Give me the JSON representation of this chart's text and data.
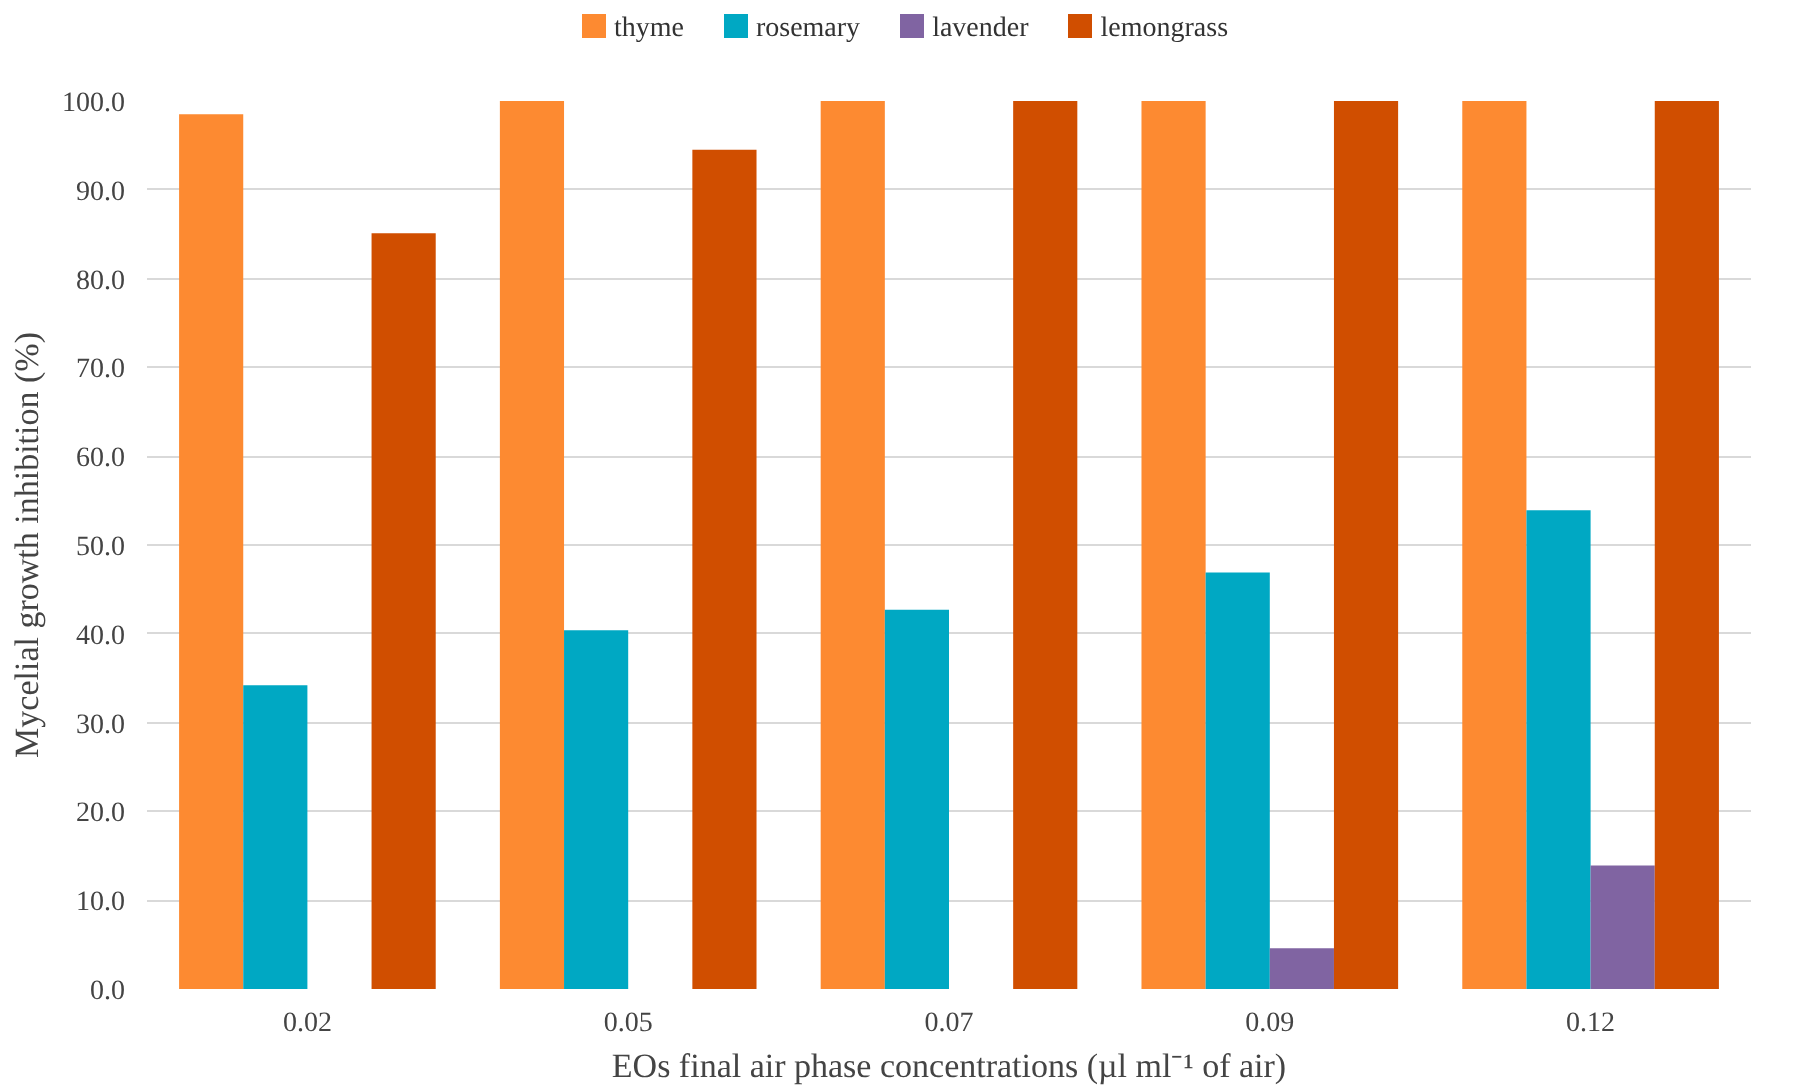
{
  "chart_data": {
    "type": "bar",
    "xlabel": "EOs final air phase concentrations (µl ml⁻¹ of air)",
    "ylabel": "Mycelial growth inhibition (%)",
    "categories": [
      "0.02",
      "0.05",
      "0.07",
      "0.09",
      "0.12"
    ],
    "series": [
      {
        "name": "thyme",
        "color": "#fd8a31",
        "values": [
          98.5,
          100,
          100,
          100,
          100
        ]
      },
      {
        "name": "rosemary",
        "color": "#00a8c3",
        "values": [
          34.2,
          40.4,
          42.7,
          46.9,
          53.9
        ]
      },
      {
        "name": "lavender",
        "color": "#8064a2",
        "values": [
          0,
          0,
          0,
          4.6,
          13.9
        ]
      },
      {
        "name": "lemongrass",
        "color": "#d04e00",
        "values": [
          85.1,
          94.5,
          100,
          100,
          100
        ]
      }
    ],
    "ylim": [
      0,
      100
    ],
    "yticks": [
      {
        "value": 0,
        "label": "0.0"
      },
      {
        "value": 10,
        "label": "10.0"
      },
      {
        "value": 20,
        "label": "20.0"
      },
      {
        "value": 30,
        "label": "30.0"
      },
      {
        "value": 40,
        "label": "40.0"
      },
      {
        "value": 50,
        "label": "50.0"
      },
      {
        "value": 60,
        "label": "60.0"
      },
      {
        "value": 70,
        "label": "70.0"
      },
      {
        "value": 80,
        "label": "80.0"
      },
      {
        "value": 90,
        "label": "90.0"
      },
      {
        "value": 100,
        "label": "100.0"
      }
    ],
    "grid": "y",
    "legend": "top"
  }
}
